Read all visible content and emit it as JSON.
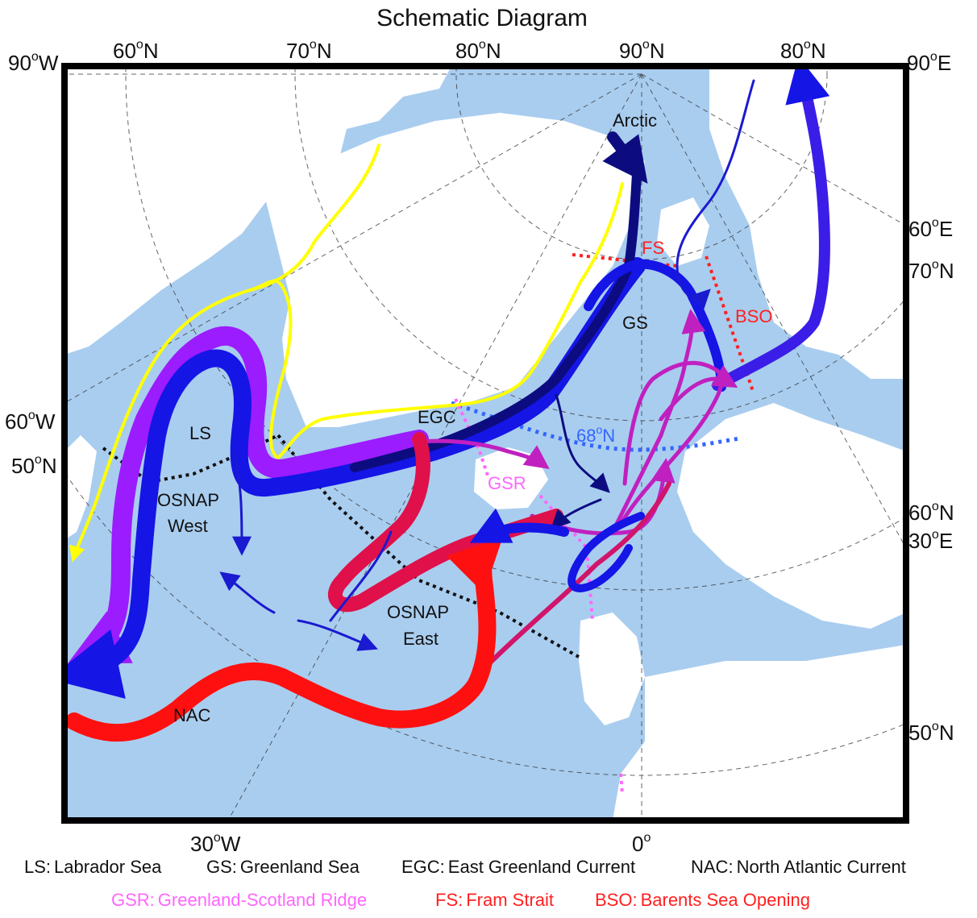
{
  "title": "Schematic Diagram",
  "colors": {
    "ocean": "#a9cdef",
    "land": "#ffffff",
    "frame": "#000000",
    "yellow": "#ffff00",
    "purple": "#9b1cff",
    "blue": "#1515e6",
    "navy": "#0c0c80",
    "magenta": "#c020c0",
    "red": "#ff1010",
    "crimson": "#e0104a",
    "pink": "#ff66ff",
    "legend_red": "#ff2020",
    "dash_blue": "#3366ff"
  },
  "coord_labels": {
    "top_left_90w": "90",
    "top_left_90w_suffix": "W",
    "top_60n": "60",
    "top_70n": "70",
    "top_80n": "80",
    "top_90n": "90",
    "top_80n_right": "80",
    "top_right_90e": "90",
    "top_right_90e_suffix": "E",
    "n_suffix": "N",
    "right_60e": "60",
    "right_60e_suffix": "E",
    "right_70n": "70",
    "right_60n": "60",
    "right_30e": "30",
    "right_30e_suffix": "E",
    "right_50n": "50",
    "left_60w": "60",
    "left_60w_suffix": "W",
    "left_50n": "50",
    "bottom_30w": "30",
    "bottom_30w_suffix": "W",
    "bottom_0": "0",
    "degree": "o"
  },
  "map_labels": {
    "arctic": "Arctic",
    "fs": "FS",
    "bso": "BSO",
    "gs": "GS",
    "egc": "EGC",
    "n68": "68",
    "n68_suffix": "N",
    "ls": "LS",
    "gsr": "GSR",
    "osnap_west_1": "OSNAP",
    "osnap_west_2": "West",
    "osnap_east_1": "OSNAP",
    "osnap_east_2": "East",
    "nac": "NAC"
  },
  "legend": {
    "row1": [
      {
        "abbr": "LS:",
        "text": "Labrador Sea"
      },
      {
        "abbr": "GS:",
        "text": "Greenland Sea"
      },
      {
        "abbr": "EGC:",
        "text": "East Greenland Current"
      },
      {
        "abbr": "NAC:",
        "text": "North Atlantic Current"
      }
    ],
    "row2": [
      {
        "abbr": "GSR:",
        "text": "Greenland-Scotland Ridge"
      },
      {
        "abbr": "FS:",
        "text": "Fram Strait"
      },
      {
        "abbr": "BSO:",
        "text": "Barents Sea Opening"
      }
    ]
  }
}
